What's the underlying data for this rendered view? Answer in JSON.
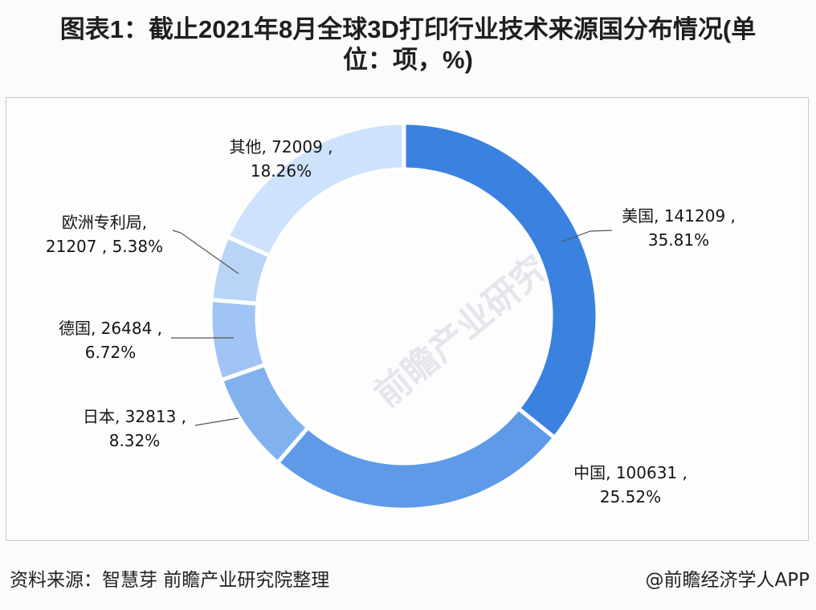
{
  "title": {
    "line1": "图表1：截止2021年8月全球3D打印行业技术来源国分布情况(单",
    "line2": "位：项，%)"
  },
  "watermark": "前瞻产业研究院",
  "footer": {
    "source": "资料来源：智慧芽 前瞻产业研究院整理",
    "credit": "@前瞻经济学人APP"
  },
  "labels": {
    "us": {
      "line1": "美国, 141209 ,",
      "line2": "35.81%"
    },
    "cn": {
      "line1": "中国, 100631 ,",
      "line2": "25.52%"
    },
    "jp": {
      "line1": "日本, 32813 ,",
      "line2": "8.32%"
    },
    "de": {
      "line1": "德国, 26484 ,",
      "line2": "6.72%"
    },
    "epo": {
      "line1": "欧洲专利局,",
      "line2": "21207 , 5.38%"
    },
    "other": {
      "line1": "其他, 72009 ,",
      "line2": "18.26%"
    }
  },
  "chart_data": {
    "type": "pie",
    "variant": "donut",
    "title": "图表1：截止2021年8月全球3D打印行业技术来源国分布情况(单位：项，%)",
    "unit": "项, %",
    "start_angle": "12 o'clock, clockwise",
    "categories": [
      "美国",
      "中国",
      "日本",
      "德国",
      "欧洲专利局",
      "其他"
    ],
    "values": [
      141209,
      100631,
      32813,
      26484,
      21207,
      72009
    ],
    "percentages": [
      35.81,
      25.52,
      8.32,
      6.72,
      5.38,
      18.26
    ],
    "colors": [
      "#3b82e0",
      "#5f9ae8",
      "#82b1ef",
      "#9fc4f5",
      "#b8d5f8",
      "#cfe2fb"
    ],
    "legend": "none (data labels with leader lines)",
    "source": "资料来源：智慧芽 前瞻产业研究院整理"
  }
}
